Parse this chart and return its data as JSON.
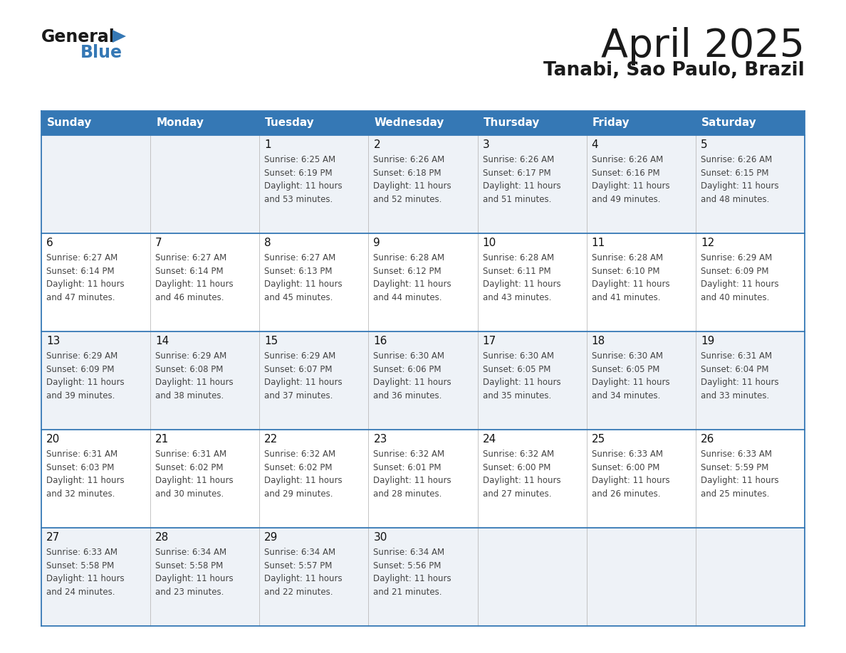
{
  "title": "April 2025",
  "subtitle": "Tanabi, Sao Paulo, Brazil",
  "days_of_week": [
    "Sunday",
    "Monday",
    "Tuesday",
    "Wednesday",
    "Thursday",
    "Friday",
    "Saturday"
  ],
  "header_bg": "#3578b5",
  "header_text": "#ffffff",
  "row_bg_light": "#eef2f7",
  "row_bg_white": "#ffffff",
  "cell_text_color": "#444444",
  "day_num_color": "#111111",
  "border_color": "#3578b5",
  "sep_line_color": "#3578b5",
  "calendar": [
    [
      {
        "day": "",
        "sunrise": "",
        "sunset": "",
        "daylight": ""
      },
      {
        "day": "",
        "sunrise": "",
        "sunset": "",
        "daylight": ""
      },
      {
        "day": "1",
        "sunrise": "Sunrise: 6:25 AM",
        "sunset": "Sunset: 6:19 PM",
        "daylight": "Daylight: 11 hours\nand 53 minutes."
      },
      {
        "day": "2",
        "sunrise": "Sunrise: 6:26 AM",
        "sunset": "Sunset: 6:18 PM",
        "daylight": "Daylight: 11 hours\nand 52 minutes."
      },
      {
        "day": "3",
        "sunrise": "Sunrise: 6:26 AM",
        "sunset": "Sunset: 6:17 PM",
        "daylight": "Daylight: 11 hours\nand 51 minutes."
      },
      {
        "day": "4",
        "sunrise": "Sunrise: 6:26 AM",
        "sunset": "Sunset: 6:16 PM",
        "daylight": "Daylight: 11 hours\nand 49 minutes."
      },
      {
        "day": "5",
        "sunrise": "Sunrise: 6:26 AM",
        "sunset": "Sunset: 6:15 PM",
        "daylight": "Daylight: 11 hours\nand 48 minutes."
      }
    ],
    [
      {
        "day": "6",
        "sunrise": "Sunrise: 6:27 AM",
        "sunset": "Sunset: 6:14 PM",
        "daylight": "Daylight: 11 hours\nand 47 minutes."
      },
      {
        "day": "7",
        "sunrise": "Sunrise: 6:27 AM",
        "sunset": "Sunset: 6:14 PM",
        "daylight": "Daylight: 11 hours\nand 46 minutes."
      },
      {
        "day": "8",
        "sunrise": "Sunrise: 6:27 AM",
        "sunset": "Sunset: 6:13 PM",
        "daylight": "Daylight: 11 hours\nand 45 minutes."
      },
      {
        "day": "9",
        "sunrise": "Sunrise: 6:28 AM",
        "sunset": "Sunset: 6:12 PM",
        "daylight": "Daylight: 11 hours\nand 44 minutes."
      },
      {
        "day": "10",
        "sunrise": "Sunrise: 6:28 AM",
        "sunset": "Sunset: 6:11 PM",
        "daylight": "Daylight: 11 hours\nand 43 minutes."
      },
      {
        "day": "11",
        "sunrise": "Sunrise: 6:28 AM",
        "sunset": "Sunset: 6:10 PM",
        "daylight": "Daylight: 11 hours\nand 41 minutes."
      },
      {
        "day": "12",
        "sunrise": "Sunrise: 6:29 AM",
        "sunset": "Sunset: 6:09 PM",
        "daylight": "Daylight: 11 hours\nand 40 minutes."
      }
    ],
    [
      {
        "day": "13",
        "sunrise": "Sunrise: 6:29 AM",
        "sunset": "Sunset: 6:09 PM",
        "daylight": "Daylight: 11 hours\nand 39 minutes."
      },
      {
        "day": "14",
        "sunrise": "Sunrise: 6:29 AM",
        "sunset": "Sunset: 6:08 PM",
        "daylight": "Daylight: 11 hours\nand 38 minutes."
      },
      {
        "day": "15",
        "sunrise": "Sunrise: 6:29 AM",
        "sunset": "Sunset: 6:07 PM",
        "daylight": "Daylight: 11 hours\nand 37 minutes."
      },
      {
        "day": "16",
        "sunrise": "Sunrise: 6:30 AM",
        "sunset": "Sunset: 6:06 PM",
        "daylight": "Daylight: 11 hours\nand 36 minutes."
      },
      {
        "day": "17",
        "sunrise": "Sunrise: 6:30 AM",
        "sunset": "Sunset: 6:05 PM",
        "daylight": "Daylight: 11 hours\nand 35 minutes."
      },
      {
        "day": "18",
        "sunrise": "Sunrise: 6:30 AM",
        "sunset": "Sunset: 6:05 PM",
        "daylight": "Daylight: 11 hours\nand 34 minutes."
      },
      {
        "day": "19",
        "sunrise": "Sunrise: 6:31 AM",
        "sunset": "Sunset: 6:04 PM",
        "daylight": "Daylight: 11 hours\nand 33 minutes."
      }
    ],
    [
      {
        "day": "20",
        "sunrise": "Sunrise: 6:31 AM",
        "sunset": "Sunset: 6:03 PM",
        "daylight": "Daylight: 11 hours\nand 32 minutes."
      },
      {
        "day": "21",
        "sunrise": "Sunrise: 6:31 AM",
        "sunset": "Sunset: 6:02 PM",
        "daylight": "Daylight: 11 hours\nand 30 minutes."
      },
      {
        "day": "22",
        "sunrise": "Sunrise: 6:32 AM",
        "sunset": "Sunset: 6:02 PM",
        "daylight": "Daylight: 11 hours\nand 29 minutes."
      },
      {
        "day": "23",
        "sunrise": "Sunrise: 6:32 AM",
        "sunset": "Sunset: 6:01 PM",
        "daylight": "Daylight: 11 hours\nand 28 minutes."
      },
      {
        "day": "24",
        "sunrise": "Sunrise: 6:32 AM",
        "sunset": "Sunset: 6:00 PM",
        "daylight": "Daylight: 11 hours\nand 27 minutes."
      },
      {
        "day": "25",
        "sunrise": "Sunrise: 6:33 AM",
        "sunset": "Sunset: 6:00 PM",
        "daylight": "Daylight: 11 hours\nand 26 minutes."
      },
      {
        "day": "26",
        "sunrise": "Sunrise: 6:33 AM",
        "sunset": "Sunset: 5:59 PM",
        "daylight": "Daylight: 11 hours\nand 25 minutes."
      }
    ],
    [
      {
        "day": "27",
        "sunrise": "Sunrise: 6:33 AM",
        "sunset": "Sunset: 5:58 PM",
        "daylight": "Daylight: 11 hours\nand 24 minutes."
      },
      {
        "day": "28",
        "sunrise": "Sunrise: 6:34 AM",
        "sunset": "Sunset: 5:58 PM",
        "daylight": "Daylight: 11 hours\nand 23 minutes."
      },
      {
        "day": "29",
        "sunrise": "Sunrise: 6:34 AM",
        "sunset": "Sunset: 5:57 PM",
        "daylight": "Daylight: 11 hours\nand 22 minutes."
      },
      {
        "day": "30",
        "sunrise": "Sunrise: 6:34 AM",
        "sunset": "Sunset: 5:56 PM",
        "daylight": "Daylight: 11 hours\nand 21 minutes."
      },
      {
        "day": "",
        "sunrise": "",
        "sunset": "",
        "daylight": ""
      },
      {
        "day": "",
        "sunrise": "",
        "sunset": "",
        "daylight": ""
      },
      {
        "day": "",
        "sunrise": "",
        "sunset": "",
        "daylight": ""
      }
    ]
  ],
  "logo_color_general": "#1a1a1a",
  "logo_color_blue": "#3578b5",
  "logo_triangle_color": "#3578b5",
  "title_fontsize": 40,
  "subtitle_fontsize": 19,
  "header_fontsize": 11,
  "day_num_fontsize": 11,
  "cell_fontsize": 8.5
}
